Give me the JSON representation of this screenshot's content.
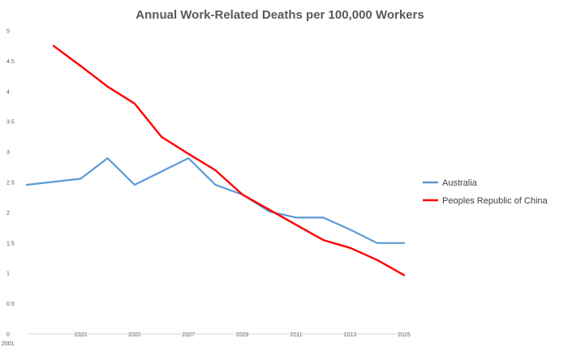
{
  "chart_data": {
    "type": "line",
    "title": "Annual Work-Related Deaths per 100,000 Workers",
    "xlabel": "",
    "ylabel": "",
    "xlim": [
      2001,
      2015
    ],
    "ylim": [
      0,
      5
    ],
    "yticks": [
      "0",
      "0.5",
      "1",
      "1.5",
      "2",
      "2.5",
      "3",
      "3.5",
      "4",
      "4.5",
      "5"
    ],
    "xticks": [
      "2001",
      "2003",
      "2005",
      "2007",
      "2009",
      "2011",
      "2013",
      "2015"
    ],
    "legend_position": "right",
    "series": [
      {
        "name": "Australia",
        "color": "#5B9BD5",
        "x": [
          2001,
          2003,
          2004,
          2005,
          2007,
          2008,
          2009,
          2010,
          2011,
          2012,
          2013,
          2014,
          2015
        ],
        "y": [
          2.46,
          2.56,
          2.9,
          2.46,
          2.9,
          2.46,
          2.3,
          2.02,
          1.92,
          1.92,
          1.72,
          1.5,
          1.5
        ]
      },
      {
        "name": "Peoples Republic of China",
        "color": "#FF0000",
        "x": [
          2002,
          2003,
          2004,
          2005,
          2006,
          2007,
          2008,
          2009,
          2010,
          2011,
          2012,
          2013,
          2014,
          2015
        ],
        "y": [
          4.75,
          4.42,
          4.08,
          3.8,
          3.25,
          2.97,
          2.7,
          2.3,
          2.05,
          1.8,
          1.55,
          1.42,
          1.22,
          0.97
        ]
      }
    ]
  }
}
